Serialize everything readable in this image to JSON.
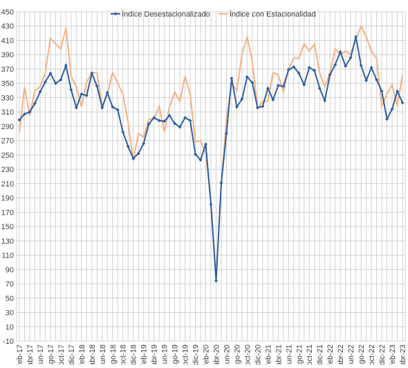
{
  "chart_data": {
    "type": "line",
    "categories": [
      "feb-17",
      null,
      "abr-17",
      null,
      "jun-17",
      null,
      "ago-17",
      null,
      "oct-17",
      null,
      "dic-17",
      null,
      "feb-18",
      null,
      "abr-18",
      null,
      "jun-18",
      null,
      "ago-18",
      null,
      "oct-18",
      null,
      "dic-18",
      null,
      "feb-19",
      null,
      "abr-19",
      null,
      "jun-19",
      null,
      "ago-19",
      null,
      "oct-19",
      null,
      "dic-19",
      null,
      "feb-20",
      null,
      "abr-20",
      null,
      "jun-20",
      null,
      "ago-20",
      null,
      "oct-20",
      null,
      "dic-20",
      null,
      "feb-21",
      null,
      "abr-21",
      null,
      "jun-21",
      null,
      "ago-21",
      null,
      "oct-21",
      null,
      "dic-21",
      null,
      "feb-22",
      null,
      "abr-22",
      null,
      "jun-22",
      null,
      "ago-22",
      null,
      "oct-22",
      null,
      "dic-22",
      null,
      "feb-23",
      null,
      "abr-23"
    ],
    "series": [
      {
        "name": "Índice Desestacionalizado",
        "color": "#2e5fa3",
        "markers": true,
        "values": [
          299,
          307,
          310,
          322,
          338,
          352,
          364,
          350,
          355,
          375,
          341,
          316,
          335,
          333,
          364,
          346,
          316,
          337,
          317,
          313,
          282,
          262,
          245,
          252,
          266,
          293,
          302,
          298,
          297,
          305,
          294,
          289,
          302,
          298,
          251,
          243,
          265,
          181,
          74,
          211,
          280,
          357,
          317,
          328,
          359,
          351,
          316,
          318,
          343,
          327,
          347,
          346,
          369,
          373,
          364,
          348,
          372,
          368,
          343,
          326,
          362,
          376,
          394,
          374,
          386,
          415,
          375,
          354,
          372,
          355,
          339,
          300,
          314,
          339,
          323
        ]
      },
      {
        "name": "Índice con Estacionalidad",
        "color": "#f4b183",
        "markers": false,
        "values": [
          282,
          345,
          305,
          340,
          345,
          365,
          413,
          405,
          398,
          428,
          360,
          345,
          317,
          352,
          365,
          365,
          318,
          335,
          365,
          350,
          335,
          295,
          242,
          280,
          275,
          300,
          300,
          318,
          282,
          317,
          338,
          325,
          360,
          335,
          268,
          270,
          252,
          185,
          78,
          208,
          300,
          350,
          340,
          390,
          415,
          380,
          315,
          325,
          325,
          365,
          362,
          338,
          370,
          385,
          385,
          405,
          395,
          405,
          365,
          345,
          365,
          398,
          390,
          395,
          390,
          412,
          430,
          415,
          395,
          385,
          318,
          335,
          348,
          318,
          362
        ]
      }
    ],
    "ylim": [
      -10,
      450
    ],
    "yticks": [
      -10,
      10,
      30,
      50,
      70,
      90,
      110,
      130,
      150,
      170,
      190,
      210,
      230,
      250,
      270,
      290,
      310,
      330,
      350,
      370,
      390,
      410,
      430,
      450
    ],
    "grid": true,
    "legend": "top"
  }
}
